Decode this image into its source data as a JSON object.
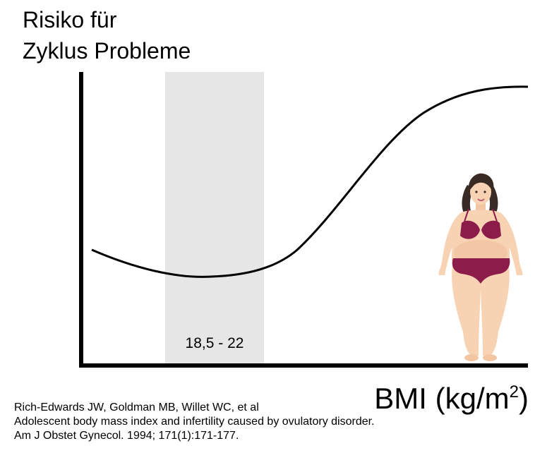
{
  "title": {
    "line1": "Risiko für",
    "line2": "Zyklus Probleme"
  },
  "x_axis": {
    "label_main": "BMI (kg/m",
    "label_sup": "2",
    "label_close": ")"
  },
  "normal_range": {
    "label": "18,5 - 22",
    "fill": "#e6e6e6"
  },
  "curve": {
    "stroke": "#000000"
  },
  "figure": {
    "icon": "woman-figure-icon",
    "skin": "#f7d3b3",
    "bikini": "#8c1d4a",
    "hair": "#3a2a24"
  },
  "citation": {
    "line1": "Rich-Edwards JW, Goldman MB, Willet WC, et al",
    "line2": "Adolescent body mass index and infertility caused by ovulatory disorder.",
    "line3": "Am J Obstet Gynecol. 1994; 171(1):171-177."
  }
}
